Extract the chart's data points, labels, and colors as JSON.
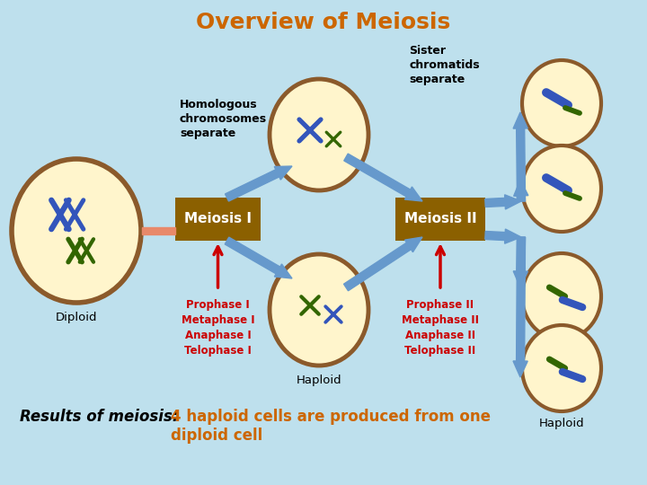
{
  "title": "Overview of Meiosis",
  "title_color": "#CC6600",
  "title_fontsize": 18,
  "bg_color": "#BEE0ED",
  "cell_fill": "#FFF5CC",
  "cell_edge": "#8B5A2B",
  "box_fill": "#8B6000",
  "box_text_color": "white",
  "arrow_color": "#6699CC",
  "red_arrow_color": "#CC0000",
  "salmon_color": "#E8896A",
  "labels": {
    "diploid": "Diploid",
    "haploid_bottom": "Haploid",
    "haploid_right": "Haploid",
    "meiosis1": "Meiosis I",
    "meiosis2": "Meiosis II",
    "homologous": "Homologous\nchromosomes\nseparate",
    "sister": "Sister\nchromatids\nseparate",
    "phases1": "Prophase I\nMetaphase I\nAnaphase I\nTelophase I",
    "phases2": "Prophase II\nMetaphase II\nAnaphase II\nTelophase II",
    "results_italic": "Results of meiosis: ",
    "results_main": "4 haploid cells are produced from one\ndiploid cell"
  },
  "label_colors": {
    "phases1": "#CC0000",
    "phases2": "#CC0000",
    "results_main": "#CC6600",
    "results_italic": "#000000"
  },
  "blue_chrom": "#3355BB",
  "green_chrom": "#336600"
}
